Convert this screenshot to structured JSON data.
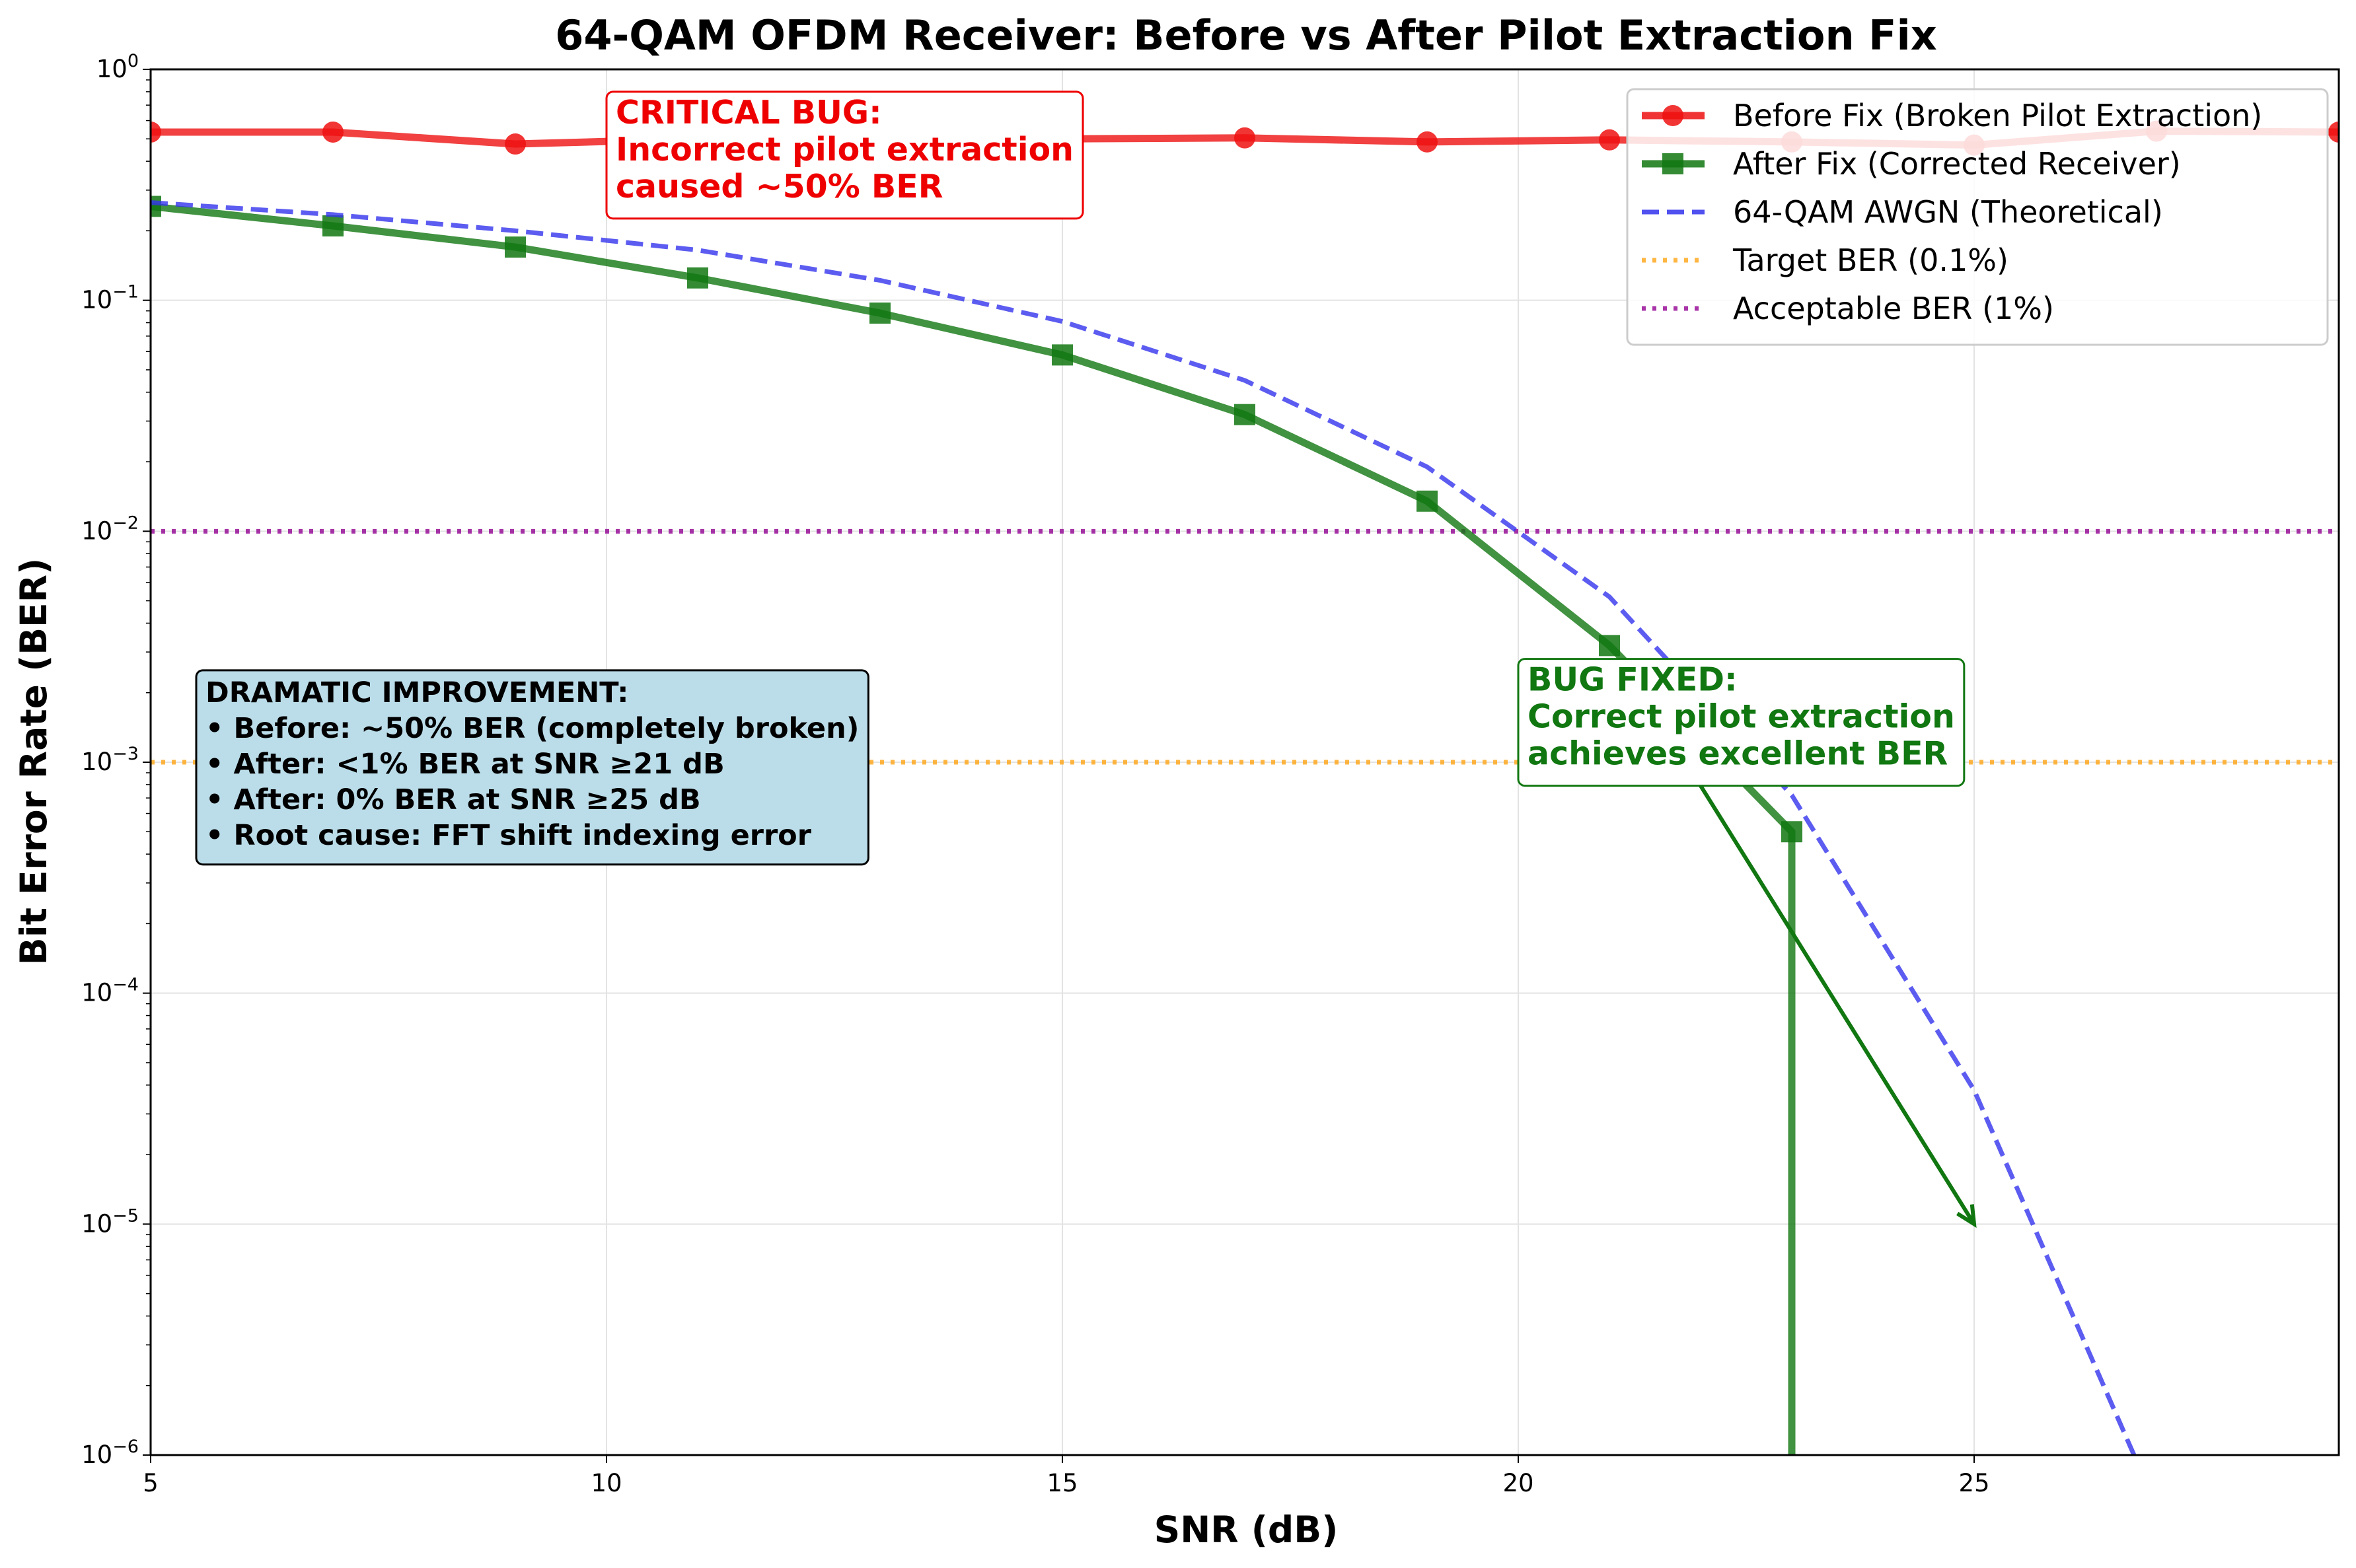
{
  "chart_data": {
    "type": "line",
    "title": "64-QAM OFDM Receiver: Before vs After Pilot Extraction Fix",
    "xlabel": "SNR (dB)",
    "ylabel": "Bit Error Rate (BER)",
    "xlim": [
      5,
      29
    ],
    "ylim": [
      1e-06,
      1
    ],
    "yscale": "log",
    "grid": true,
    "legend_position": "top-right",
    "x_ticks": [
      5,
      10,
      15,
      20,
      25
    ],
    "y_tick_exponents": [
      0,
      -1,
      -2,
      -3,
      -4,
      -5,
      -6
    ],
    "series": [
      {
        "name": "Before Fix (Broken Pilot Extraction)",
        "color": "#ee1111",
        "marker": "circle",
        "style": "solid",
        "x": [
          5,
          7,
          9,
          11,
          13,
          15,
          17,
          19,
          21,
          23,
          25,
          27,
          29
        ],
        "y": [
          0.535,
          0.535,
          0.475,
          0.5,
          0.505,
          0.5,
          0.505,
          0.485,
          0.495,
          0.485,
          0.47,
          0.54,
          0.535
        ]
      },
      {
        "name": "After Fix (Corrected Receiver)",
        "color": "#117711",
        "marker": "square",
        "style": "solid",
        "x": [
          5,
          7,
          9,
          11,
          13,
          15,
          17,
          19,
          21,
          23
        ],
        "y": [
          0.255,
          0.21,
          0.17,
          0.125,
          0.088,
          0.058,
          0.032,
          0.0135,
          0.0032,
          0.0005
        ],
        "drop_to_zero_at": 23
      },
      {
        "name": "64-QAM AWGN (Theoretical)",
        "color": "#3333ee",
        "marker": "none",
        "style": "dashed",
        "x": [
          5,
          7,
          9,
          11,
          13,
          15,
          17,
          19,
          21,
          23,
          25,
          27
        ],
        "y": [
          0.265,
          0.235,
          0.2,
          0.165,
          0.122,
          0.081,
          0.045,
          0.019,
          0.0052,
          0.00072,
          3.8e-05,
          6e-07
        ]
      },
      {
        "name": "Target BER (0.1%)",
        "color": "#ffaa22",
        "marker": "none",
        "style": "dotted",
        "hline": 0.001
      },
      {
        "name": "Acceptable BER (1%)",
        "color": "#991199",
        "marker": "none",
        "style": "dotted",
        "hline": 0.01
      }
    ],
    "annotations": [
      {
        "lines": [
          "CRITICAL BUG:",
          "Incorrect pilot extraction",
          "caused ~50% BER"
        ],
        "color": "#ee0000",
        "anchor_x": 10.0,
        "anchor_y": 0.8
      },
      {
        "lines": [
          "BUG FIXED:",
          "Correct pilot extraction",
          "achieves excellent BER"
        ],
        "color": "#117711",
        "anchor_x": 20.0,
        "anchor_y": 0.0028,
        "arrow_to_x": 25,
        "arrow_to_y": 1e-05
      },
      {
        "lines": [
          "DRAMATIC IMPROVEMENT:",
          "• Before: ~50% BER (completely broken)",
          "• After: <1% BER at SNR ≥21 dB",
          "• After: 0% BER at SNR ≥25 dB",
          "• Root cause: FFT shift indexing error"
        ],
        "color": "#000000",
        "background": "#bbdde9",
        "anchor_x": 5.5,
        "anchor_y": 0.0025
      }
    ]
  }
}
